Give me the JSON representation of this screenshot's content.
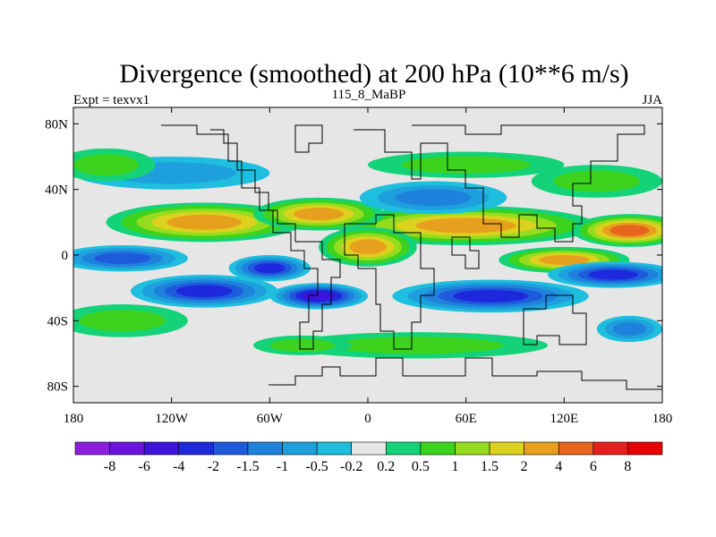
{
  "chart_data": {
    "type": "heatmap",
    "title": "Divergence (smoothed) at 200 hPa (10**6 m/s)",
    "left_string": "Expt = texvx1",
    "center_string": "115_8_MaBP",
    "right_string": "JJA",
    "x_range": [
      -180,
      180
    ],
    "y_range": [
      -90,
      90
    ],
    "x_ticks": [
      {
        "value": -180,
        "label": "180"
      },
      {
        "value": -120,
        "label": "120W"
      },
      {
        "value": -60,
        "label": "60W"
      },
      {
        "value": 0,
        "label": "0"
      },
      {
        "value": 60,
        "label": "60E"
      },
      {
        "value": 120,
        "label": "120E"
      },
      {
        "value": 180,
        "label": "180"
      }
    ],
    "y_ticks": [
      {
        "value": 80,
        "label": "80N"
      },
      {
        "value": 40,
        "label": "40N"
      },
      {
        "value": 0,
        "label": "0"
      },
      {
        "value": -40,
        "label": "40S"
      },
      {
        "value": -80,
        "label": "80S"
      }
    ],
    "levels": [
      -8,
      -6,
      -4,
      -2,
      -1.5,
      -1,
      -0.5,
      -0.2,
      0.2,
      0.5,
      1,
      1.5,
      2,
      4,
      6,
      8
    ],
    "level_labels": [
      "-8",
      "-6",
      "-4",
      "-2",
      "-1.5",
      "-1",
      "-0.5",
      "-0.2",
      "0.2",
      "0.5",
      "1",
      "1.5",
      "2",
      "4",
      "6",
      "8"
    ],
    "colors": [
      "#8c1ee0",
      "#6a14dc",
      "#3c14dc",
      "#1e28dc",
      "#1e5adc",
      "#1e82dc",
      "#1ea0dc",
      "#1ebede",
      "#e6e6e6",
      "#14d278",
      "#3cd21e",
      "#96dc1e",
      "#dcd21e",
      "#e6a01e",
      "#e6641e",
      "#e61e1e",
      "#e60000"
    ],
    "features": [
      {
        "lon": -100,
        "lat": 20,
        "rx": 60,
        "ry": 12,
        "v": 3
      },
      {
        "lon": 60,
        "lat": 18,
        "rx": 80,
        "ry": 12,
        "v": 3.5
      },
      {
        "lon": 160,
        "lat": 15,
        "rx": 35,
        "ry": 10,
        "v": 4.5
      },
      {
        "lon": 0,
        "lat": 5,
        "rx": 30,
        "ry": 12,
        "v": 3
      },
      {
        "lon": 120,
        "lat": -3,
        "rx": 40,
        "ry": 8,
        "v": 3
      },
      {
        "lon": -150,
        "lat": -2,
        "rx": 40,
        "ry": 8,
        "v": -1.8
      },
      {
        "lon": -30,
        "lat": 25,
        "rx": 40,
        "ry": 10,
        "v": 2
      },
      {
        "lon": -30,
        "lat": -25,
        "rx": 30,
        "ry": 8,
        "v": -5
      },
      {
        "lon": -100,
        "lat": -22,
        "rx": 45,
        "ry": 10,
        "v": -3.5
      },
      {
        "lon": 75,
        "lat": -25,
        "rx": 60,
        "ry": 10,
        "v": -3
      },
      {
        "lon": 150,
        "lat": -12,
        "rx": 40,
        "ry": 8,
        "v": -2
      },
      {
        "lon": -60,
        "lat": -8,
        "rx": 25,
        "ry": 8,
        "v": -2.5
      },
      {
        "lon": 40,
        "lat": 35,
        "rx": 45,
        "ry": 10,
        "v": -1.2
      },
      {
        "lon": -120,
        "lat": 50,
        "rx": 60,
        "ry": 10,
        "v": -0.9
      },
      {
        "lon": 60,
        "lat": 55,
        "rx": 60,
        "ry": 8,
        "v": 0.9
      },
      {
        "lon": -160,
        "lat": 55,
        "rx": 30,
        "ry": 10,
        "v": 0.8
      },
      {
        "lon": 140,
        "lat": 45,
        "rx": 40,
        "ry": 10,
        "v": 0.8
      },
      {
        "lon": -150,
        "lat": -40,
        "rx": 40,
        "ry": 10,
        "v": 0.8
      },
      {
        "lon": 30,
        "lat": -55,
        "rx": 80,
        "ry": 8,
        "v": 0.9
      },
      {
        "lon": -40,
        "lat": -55,
        "rx": 30,
        "ry": 6,
        "v": 0.7
      },
      {
        "lon": 160,
        "lat": -45,
        "rx": 20,
        "ry": 8,
        "v": -1.1
      }
    ]
  }
}
